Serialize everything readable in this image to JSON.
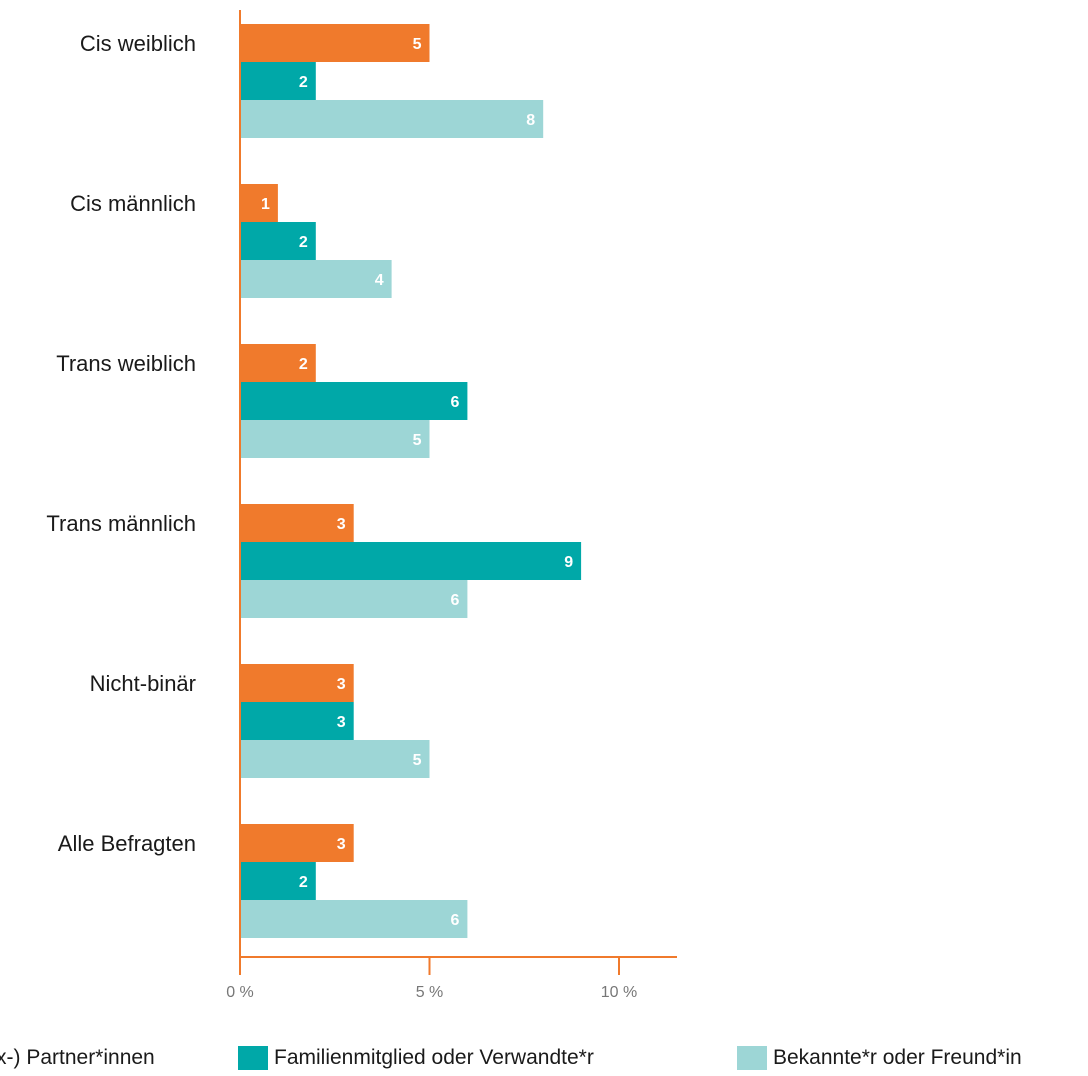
{
  "chart_data": {
    "type": "bar",
    "orientation": "horizontal",
    "categories": [
      "Cis weiblich",
      "Cis männlich",
      "Trans weiblich",
      "Trans männlich",
      "Nicht-binär",
      "Alle Befragten"
    ],
    "series": [
      {
        "name": "(Ex-) Partner*innen",
        "color": "#f07a2c",
        "values": [
          5,
          1,
          2,
          3,
          3,
          3
        ]
      },
      {
        "name": "Familienmitglied oder Verwandte*r",
        "color": "#00a8a8",
        "values": [
          2,
          2,
          6,
          9,
          3,
          2
        ]
      },
      {
        "name": "Bekannte*r oder Freund*in",
        "color": "#9dd6d6",
        "values": [
          8,
          4,
          5,
          6,
          5,
          6
        ]
      }
    ],
    "xticks": [
      "0 %",
      "5 %",
      "10 %"
    ],
    "xtick_values": [
      0,
      5,
      10
    ],
    "xlim": [
      0,
      11.5
    ],
    "axis_color": "#f07a2c",
    "legend_position": "bottom"
  }
}
